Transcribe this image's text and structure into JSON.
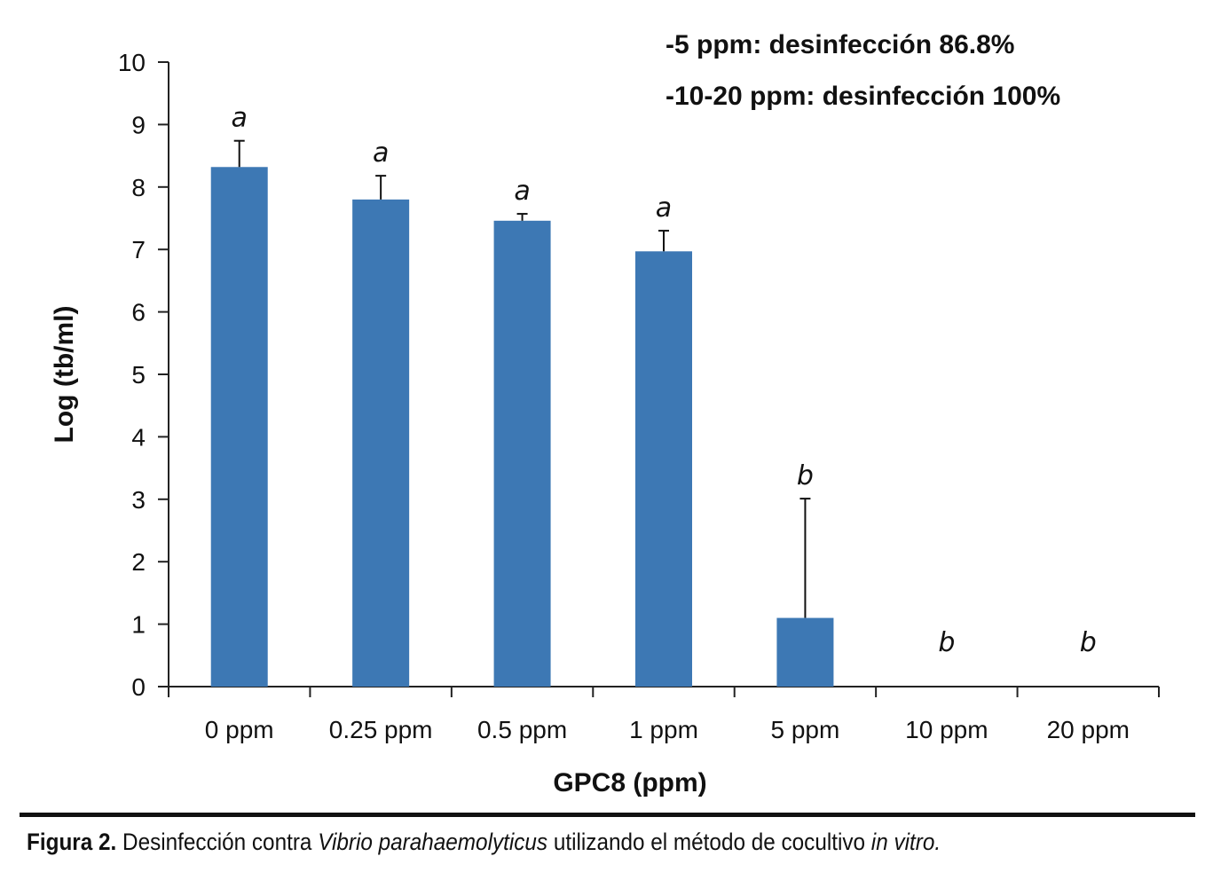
{
  "chart_data": {
    "type": "bar",
    "categories": [
      "0 ppm",
      "0.25 ppm",
      "0.5 ppm",
      "1 ppm",
      "5 ppm",
      "10 ppm",
      "20 ppm"
    ],
    "values": [
      8.32,
      7.8,
      7.46,
      6.97,
      1.1,
      0,
      0
    ],
    "error_upper": [
      8.74,
      8.18,
      7.57,
      7.3,
      3.01,
      null,
      null
    ],
    "significance": [
      "a",
      "a",
      "a",
      "a",
      "b",
      "b",
      "b"
    ],
    "ylim": [
      0,
      10
    ],
    "yticks": [
      "0",
      "1",
      "2",
      "3",
      "4",
      "5",
      "6",
      "7",
      "8",
      "9",
      "10"
    ],
    "xlabel": "GPC8 (ppm)",
    "ylabel": "Log (tb/ml)",
    "bar_color": "#3d78b4",
    "annotations": [
      "-5 ppm: desinfección 86.8%",
      "-10-20 ppm: desinfección 100%"
    ]
  },
  "caption": {
    "label": "Figura 2.",
    "text_1": " Desinfección contra ",
    "species": "Vibrio parahaemolyticus",
    "text_2": " utilizando el método de cocultivo ",
    "method": "in vitro."
  }
}
